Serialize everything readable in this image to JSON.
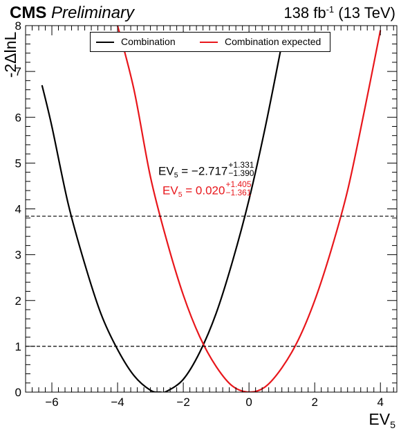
{
  "header": {
    "experiment": "CMS",
    "status": "Preliminary",
    "lumi_value": "138 fb",
    "lumi_exponent": "-1",
    "energy": "(13 TeV)"
  },
  "colors": {
    "observed": "#000000",
    "expected": "#e8161b"
  },
  "results": {
    "observed": {
      "label": "EV",
      "subscript": "5",
      "central": " = −2.717",
      "up": "+1.331",
      "down": "−1.390"
    },
    "expected": {
      "label": "EV",
      "subscript": "5",
      "central": " = 0.020",
      "up": "+1.405",
      "down": "−1.361"
    }
  },
  "chart_data": {
    "type": "line",
    "title": "",
    "xlabel": "EV",
    "xlabel_subscript": "5",
    "ylabel": "-2ΔlnL",
    "xlim": [
      -6.8,
      4.5
    ],
    "ylim": [
      0,
      8
    ],
    "x_ticks": [
      -6,
      -4,
      -2,
      0,
      2,
      4
    ],
    "y_ticks": [
      0,
      1,
      2,
      3,
      4,
      5,
      6,
      7,
      8
    ],
    "reference_lines": [
      1.0,
      3.84
    ],
    "legend": {
      "placement": "top-center",
      "entries": [
        "Combination",
        "Combination expected"
      ]
    },
    "series": [
      {
        "name": "Combination",
        "color": "#000000",
        "x": [
          -6.3,
          -6.0,
          -5.5,
          -5.0,
          -4.5,
          -4.0,
          -3.5,
          -3.0,
          -2.717,
          -2.5,
          -2.0,
          -1.5,
          -1.0,
          -0.5,
          0.0,
          0.5,
          1.0
        ],
        "y": [
          6.7,
          5.8,
          4.1,
          2.8,
          1.7,
          0.93,
          0.36,
          0.04,
          0.0,
          0.02,
          0.28,
          0.87,
          1.72,
          2.86,
          4.2,
          5.8,
          7.6
        ]
      },
      {
        "name": "Combination expected",
        "color": "#e8161b",
        "x": [
          -4.0,
          -3.5,
          -3.0,
          -2.5,
          -2.0,
          -1.5,
          -1.0,
          -0.5,
          0.02,
          0.5,
          1.0,
          1.5,
          2.0,
          2.5,
          3.0,
          3.5,
          4.0
        ],
        "y": [
          8.0,
          6.6,
          4.7,
          3.3,
          2.12,
          1.21,
          0.56,
          0.13,
          0.0,
          0.12,
          0.53,
          1.14,
          2.0,
          3.1,
          4.4,
          6.1,
          7.9
        ]
      }
    ]
  }
}
